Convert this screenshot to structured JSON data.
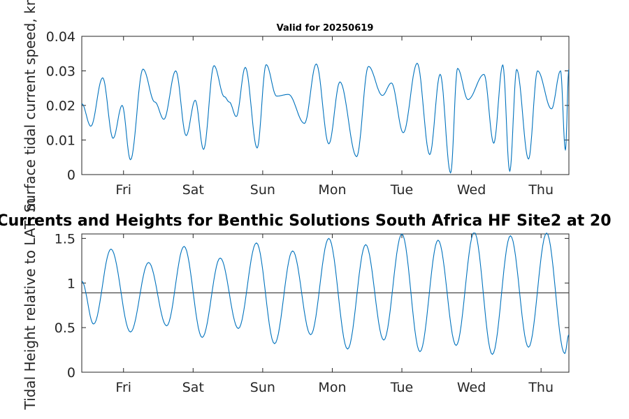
{
  "figure": {
    "top_title": "Valid for 20250619",
    "main_title": "Currents and Heights for Benthic Solutions South Africa HF Site2 at 20"
  },
  "chart_data": [
    {
      "type": "line",
      "ylabel": "Surface tidal current speed, kn",
      "xlim": [
        0,
        7
      ],
      "ylim": [
        0,
        0.04
      ],
      "yticks": [
        0,
        0.01,
        0.02,
        0.03,
        0.04
      ],
      "yticklabels": [
        "0",
        "0.01",
        "0.02",
        "0.03",
        "0.04"
      ],
      "xticks": [
        0.6,
        1.6,
        2.6,
        3.6,
        4.6,
        5.6,
        6.6
      ],
      "xticklabels": [
        "Fri",
        "Sat",
        "Sun",
        "Mon",
        "Tue",
        "Wed",
        "Thu"
      ],
      "grid": false,
      "series": [
        {
          "color": "#0072BD",
          "x": [
            0.0,
            0.13,
            0.3,
            0.45,
            0.58,
            0.7,
            0.88,
            1.05,
            1.18,
            1.35,
            1.5,
            1.63,
            1.75,
            1.9,
            2.05,
            2.12,
            2.22,
            2.35,
            2.52,
            2.65,
            2.8,
            2.97,
            3.2,
            3.37,
            3.55,
            3.71,
            3.95,
            4.12,
            4.32,
            4.45,
            4.62,
            4.82,
            5.0,
            5.15,
            5.3,
            5.4,
            5.55,
            5.78,
            5.92,
            6.05,
            6.15,
            6.25,
            6.42,
            6.55,
            6.75,
            6.88,
            6.95,
            7.0
          ],
          "y": [
            0.0205,
            0.014,
            0.028,
            0.0105,
            0.02,
            0.0043,
            0.0305,
            0.021,
            0.016,
            0.03,
            0.0113,
            0.0215,
            0.0073,
            0.0315,
            0.0225,
            0.021,
            0.0168,
            0.031,
            0.0077,
            0.0318,
            0.0227,
            0.0232,
            0.0148,
            0.032,
            0.0089,
            0.0268,
            0.0052,
            0.0313,
            0.0229,
            0.0265,
            0.0121,
            0.0322,
            0.0058,
            0.029,
            0.0005,
            0.0307,
            0.0217,
            0.029,
            0.0091,
            0.0317,
            0.001,
            0.0304,
            0.0045,
            0.03,
            0.019,
            0.03,
            0.0072,
            0.0305
          ]
        }
      ]
    },
    {
      "type": "line",
      "ylabel": "Tidal Height relative to LAT, m",
      "xlim": [
        0,
        7
      ],
      "ylim": [
        0,
        1.55
      ],
      "yticks": [
        0,
        0.5,
        1,
        1.5
      ],
      "yticklabels": [
        "0",
        "0.5",
        "1",
        "1.5"
      ],
      "xticks": [
        0.6,
        1.6,
        2.6,
        3.6,
        4.6,
        5.6,
        6.6
      ],
      "xticklabels": [
        "Fri",
        "Sat",
        "Sun",
        "Mon",
        "Tue",
        "Wed",
        "Thu"
      ],
      "grid": false,
      "reference_line": 0.89,
      "series": [
        {
          "color": "#0072BD",
          "x": [
            0.0,
            0.17,
            0.42,
            0.7,
            0.96,
            1.22,
            1.47,
            1.73,
            1.99,
            2.25,
            2.51,
            2.77,
            3.03,
            3.29,
            3.55,
            3.82,
            4.08,
            4.34,
            4.6,
            4.86,
            5.12,
            5.38,
            5.64,
            5.9,
            6.16,
            6.42,
            6.68,
            6.94,
            7.0
          ],
          "y": [
            1.02,
            0.54,
            1.38,
            0.45,
            1.23,
            0.52,
            1.41,
            0.39,
            1.28,
            0.49,
            1.45,
            0.32,
            1.36,
            0.42,
            1.5,
            0.26,
            1.43,
            0.36,
            1.55,
            0.23,
            1.48,
            0.3,
            1.57,
            0.2,
            1.53,
            0.28,
            1.56,
            0.21,
            0.42
          ]
        }
      ]
    }
  ]
}
